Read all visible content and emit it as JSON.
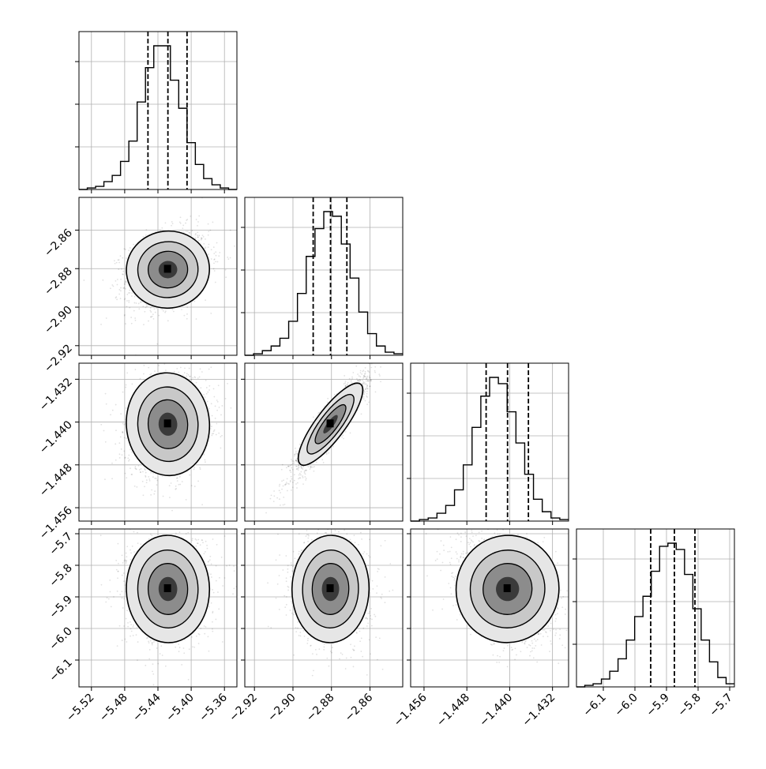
{
  "chart_data": {
    "type": "corner",
    "grid": true,
    "parameters": [
      {
        "range": [
          -5.535,
          -5.345
        ],
        "ticks": [
          -5.52,
          -5.48,
          -5.44,
          -5.4,
          -5.36
        ],
        "tick_labels": [
          "−5.52",
          "−5.48",
          "−5.44",
          "−5.40",
          "−5.36"
        ],
        "quantiles": [
          -5.452,
          -5.428,
          -5.405
        ],
        "histogram": [
          0,
          1,
          2,
          5,
          9,
          18,
          31,
          56,
          78,
          92,
          92,
          70,
          52,
          30,
          16,
          7,
          3,
          1,
          0
        ]
      },
      {
        "range": [
          -2.925,
          -2.843
        ],
        "ticks": [
          -2.92,
          -2.9,
          -2.88,
          -2.86
        ],
        "tick_labels": [
          "−2.92",
          "−2.90",
          "−2.88",
          "−2.86"
        ],
        "quantiles": [
          -2.8895,
          -2.8805,
          -2.872
        ],
        "histogram": [
          0,
          1,
          3,
          6,
          11,
          22,
          40,
          64,
          82,
          93,
          90,
          72,
          50,
          28,
          14,
          6,
          2,
          1
        ]
      },
      {
        "range": [
          -1.4585,
          -1.429
        ],
        "ticks": [
          -1.456,
          -1.448,
          -1.44,
          -1.432
        ],
        "tick_labels": [
          "−1.456",
          "−1.448",
          "−1.440",
          "−1.432"
        ],
        "quantiles": [
          -1.4444,
          -1.4404,
          -1.4365
        ],
        "histogram": [
          0,
          1,
          2,
          5,
          10,
          20,
          36,
          60,
          80,
          92,
          88,
          70,
          50,
          30,
          14,
          6,
          2,
          1
        ]
      },
      {
        "range": [
          -6.185,
          -5.685
        ],
        "ticks": [
          -6.1,
          -6.0,
          -5.9,
          -5.8,
          -5.7
        ],
        "tick_labels": [
          "−6.1",
          "−6.0",
          "−5.9",
          "−5.8",
          "−5.7"
        ],
        "quantiles": [
          -5.95,
          -5.875,
          -5.81
        ],
        "histogram": [
          0,
          1,
          2,
          5,
          10,
          18,
          30,
          45,
          58,
          74,
          90,
          92,
          88,
          72,
          50,
          30,
          16,
          6,
          2
        ]
      }
    ],
    "pairs": [
      {
        "row": 1,
        "col": 0,
        "mean": [
          -5.428,
          -2.8805
        ],
        "sd": [
          0.025,
          0.01
        ],
        "corr": 0.25,
        "contours": [
          0.55,
          0.35,
          0.2
        ]
      },
      {
        "row": 2,
        "col": 0,
        "mean": [
          -5.428,
          -1.4404
        ],
        "sd": [
          0.025,
          0.0048
        ],
        "corr": 0.15,
        "contours": [
          0.55,
          0.35,
          0.2
        ]
      },
      {
        "row": 2,
        "col": 1,
        "mean": [
          -2.8805,
          -1.4404
        ],
        "sd": [
          0.01,
          0.0048
        ],
        "corr": 0.93,
        "contours": [
          0.55,
          0.35,
          0.2
        ]
      },
      {
        "row": 3,
        "col": 0,
        "mean": [
          -5.428,
          -5.875
        ],
        "sd": [
          0.025,
          0.085
        ],
        "corr": 0.05,
        "contours": [
          0.55,
          0.35,
          0.2
        ]
      },
      {
        "row": 3,
        "col": 1,
        "mean": [
          -2.8805,
          -5.875
        ],
        "sd": [
          0.01,
          0.085
        ],
        "corr": -0.05,
        "contours": [
          0.55,
          0.35,
          0.2
        ]
      },
      {
        "row": 3,
        "col": 2,
        "mean": [
          -1.4404,
          -5.875
        ],
        "sd": [
          0.0048,
          0.085
        ],
        "corr": -0.35,
        "contours": [
          0.55,
          0.35,
          0.2
        ]
      }
    ]
  }
}
